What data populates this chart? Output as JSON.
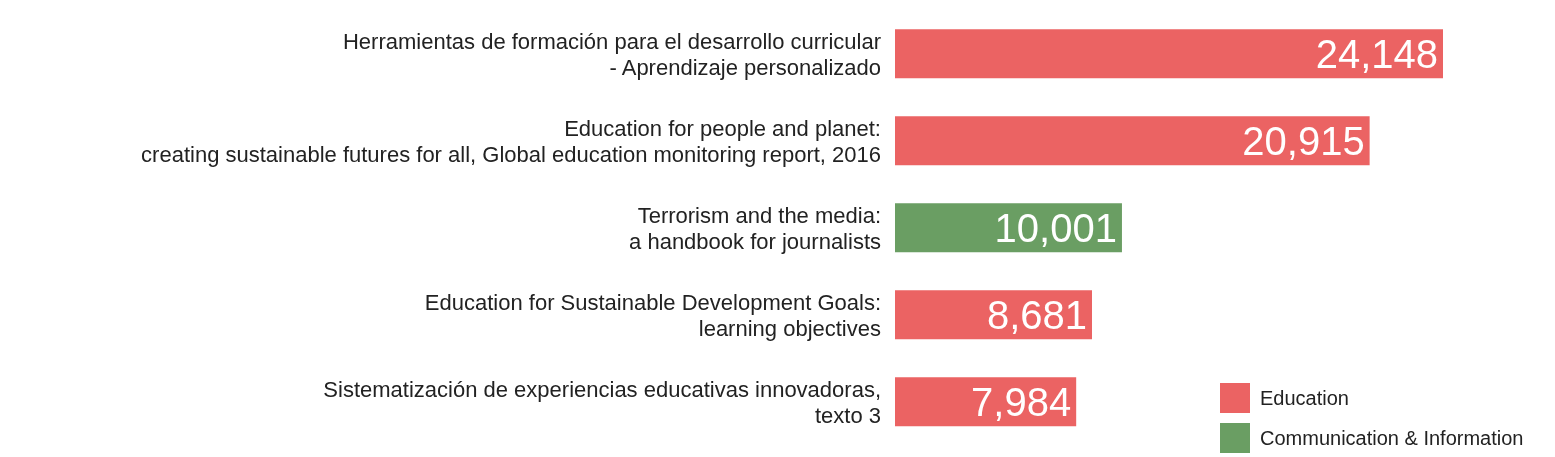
{
  "chart_data": {
    "type": "bar",
    "orientation": "horizontal",
    "stacked": true,
    "categories": [
      "Herramientas de formación para el desarrollo curricular\n- Aprendizaje personalizado",
      "Education for people and planet:\ncreating sustainable futures for all, Global education monitoring report, 2016",
      "Terrorism and the media:\na handbook for journalists",
      "Education for Sustainable Development Goals:\nlearning objectives",
      "Sistematización de experiencias educativas innovadoras,\ntexto 3"
    ],
    "series": [
      {
        "name": "Education",
        "color": "#eb6363",
        "values": [
          24148,
          20915,
          null,
          8681,
          7984
        ],
        "value_labels": [
          "24,148",
          "20,915",
          null,
          "8,681",
          "7,984"
        ]
      },
      {
        "name": "Communication & Information",
        "color": "#6a9e63",
        "values": [
          null,
          null,
          10001,
          null,
          null
        ],
        "value_labels": [
          null,
          null,
          "10,001",
          null,
          null
        ]
      }
    ],
    "tick_labels": "y",
    "legend": "bottom right"
  }
}
